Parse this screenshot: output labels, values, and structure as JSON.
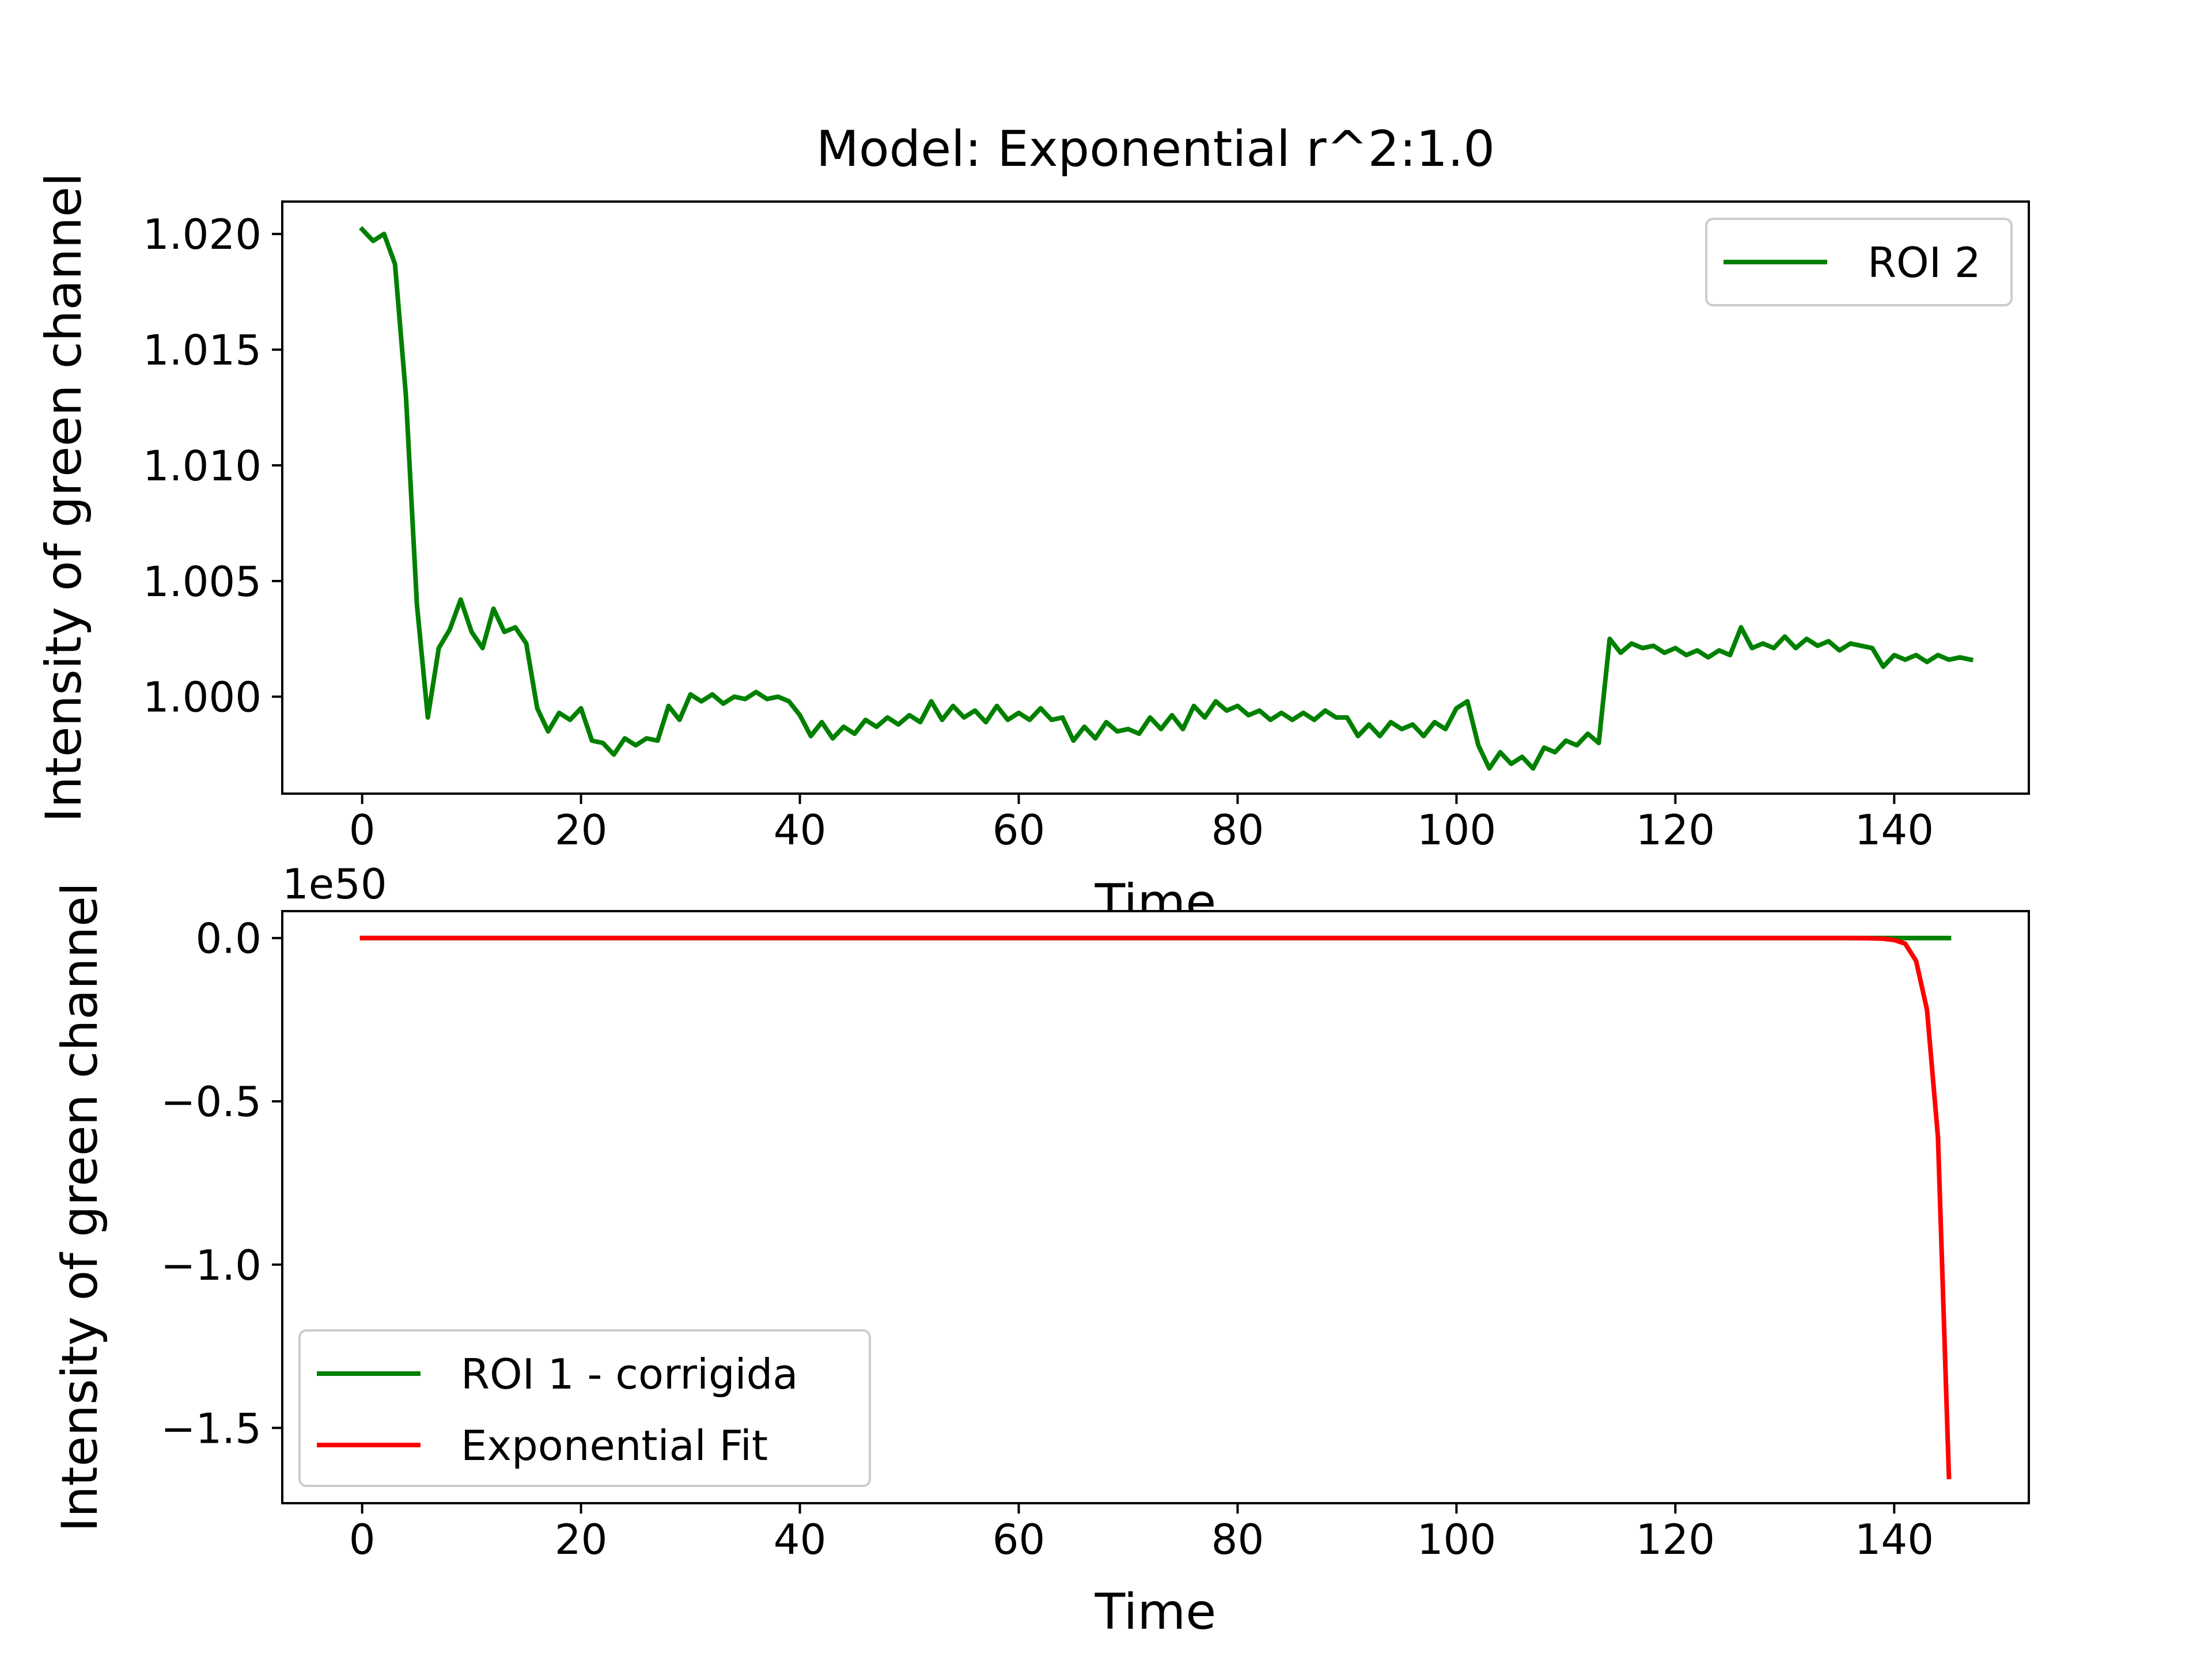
{
  "chart_data": [
    {
      "type": "line",
      "title": "Model: Exponential r^2:1.0",
      "xlabel": "Time",
      "ylabel": "Intensity of green channel",
      "xlim": [
        -7.3,
        152.3
      ],
      "ylim": [
        0.99581,
        1.0214
      ],
      "xticks": [
        0,
        20,
        40,
        60,
        80,
        100,
        120,
        140
      ],
      "xtick_labels": [
        "0",
        "20",
        "40",
        "60",
        "80",
        "100",
        "120",
        "140"
      ],
      "yticks": [
        1.0,
        1.005,
        1.01,
        1.015,
        1.02
      ],
      "ytick_labels": [
        "1.000",
        "1.005",
        "1.010",
        "1.015",
        "1.020"
      ],
      "grid": false,
      "legend_position": "upper right",
      "series": [
        {
          "name": "ROI 2",
          "color": "#008000",
          "x_start": 0,
          "x_step": 1,
          "values": [
            1.0202,
            1.0197,
            1.02,
            1.0187,
            1.013,
            1.004,
            0.9991,
            1.0021,
            1.0029,
            1.0042,
            1.0028,
            1.0021,
            1.0038,
            1.0028,
            1.003,
            1.0023,
            0.9995,
            0.9985,
            0.9993,
            0.999,
            0.9995,
            0.9981,
            0.998,
            0.9975,
            0.9982,
            0.9979,
            0.9982,
            0.9981,
            0.9996,
            0.999,
            1.0001,
            0.9998,
            1.0001,
            0.9997,
            1.0,
            0.9999,
            1.0002,
            0.9999,
            1.0,
            0.9998,
            0.9992,
            0.9983,
            0.9989,
            0.9982,
            0.9987,
            0.9984,
            0.999,
            0.9987,
            0.9991,
            0.9988,
            0.9992,
            0.9989,
            0.9998,
            0.999,
            0.9996,
            0.9991,
            0.9994,
            0.9989,
            0.9996,
            0.999,
            0.9993,
            0.999,
            0.9995,
            0.999,
            0.9991,
            0.9981,
            0.9987,
            0.9982,
            0.9989,
            0.9985,
            0.9986,
            0.9984,
            0.9991,
            0.9986,
            0.9992,
            0.9986,
            0.9996,
            0.9991,
            0.9998,
            0.9994,
            0.9996,
            0.9992,
            0.9994,
            0.999,
            0.9993,
            0.999,
            0.9993,
            0.999,
            0.9994,
            0.9991,
            0.9991,
            0.9983,
            0.9988,
            0.9983,
            0.9989,
            0.9986,
            0.9988,
            0.9983,
            0.9989,
            0.9986,
            0.9995,
            0.9998,
            0.9979,
            0.9969,
            0.9976,
            0.9971,
            0.9974,
            0.9969,
            0.9978,
            0.9976,
            0.9981,
            0.9979,
            0.9984,
            0.998,
            1.0025,
            1.0019,
            1.0023,
            1.0021,
            1.0022,
            1.0019,
            1.0021,
            1.0018,
            1.002,
            1.0017,
            1.002,
            1.0018,
            1.003,
            1.0021,
            1.0023,
            1.0021,
            1.0026,
            1.0021,
            1.0025,
            1.0022,
            1.0024,
            1.002,
            1.0023,
            1.0022,
            1.0021,
            1.0013,
            1.0018,
            1.0016,
            1.0018,
            1.0015,
            1.0018,
            1.0016,
            1.0017,
            1.0016
          ]
        }
      ]
    },
    {
      "type": "line",
      "xlabel": "Time",
      "ylabel": "Intensity of green channel",
      "y_offset_label": "1e50",
      "xlim": [
        -7.3,
        152.3
      ],
      "ylim": [
        -1.7305,
        0.0824
      ],
      "xticks": [
        0,
        20,
        40,
        60,
        80,
        100,
        120,
        140
      ],
      "xtick_labels": [
        "0",
        "20",
        "40",
        "60",
        "80",
        "100",
        "120",
        "140"
      ],
      "yticks": [
        0.0,
        -0.5,
        -1.0,
        -1.5
      ],
      "ytick_labels": [
        "0.0",
        "−0.5",
        "−1.0",
        "−1.5"
      ],
      "grid": false,
      "legend_position": "lower left",
      "series": [
        {
          "name": "ROI 1 - corrigida",
          "color": "#008000",
          "x": [
            0,
            145
          ],
          "values": [
            0.0,
            0.0
          ]
        },
        {
          "name": "Exponential Fit",
          "color": "#ff0000",
          "x": [
            0,
            130,
            136,
            137,
            138,
            139,
            140,
            141,
            142,
            143,
            144,
            145
          ],
          "values": [
            0.0,
            0.0,
            -0.0001,
            -0.0003,
            -0.0008,
            -0.002,
            -0.006,
            -0.017,
            -0.07,
            -0.22,
            -0.61,
            -1.65
          ]
        }
      ]
    }
  ]
}
